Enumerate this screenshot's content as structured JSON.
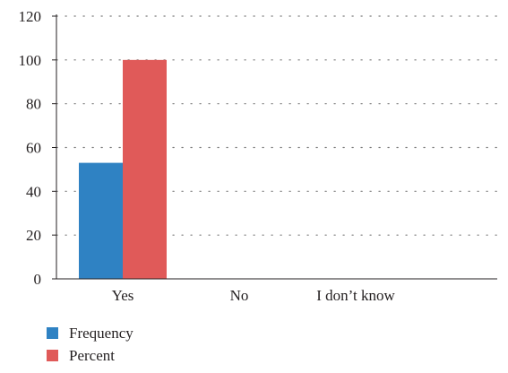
{
  "chart_data": {
    "type": "bar",
    "categories": [
      "Yes",
      "No",
      "I don’t know"
    ],
    "series": [
      {
        "name": "Frequency",
        "values": [
          53,
          0,
          0
        ],
        "color": "#2f82c3"
      },
      {
        "name": "Percent",
        "values": [
          100,
          0,
          0
        ],
        "color": "#e05a59"
      }
    ],
    "yticks": [
      "0",
      "20",
      "40",
      "60",
      "80",
      "100",
      "120"
    ],
    "ylim": [
      0,
      120
    ],
    "grid": true,
    "legend_position": "bottom-left",
    "title": "",
    "xlabel": "",
    "ylabel": ""
  }
}
